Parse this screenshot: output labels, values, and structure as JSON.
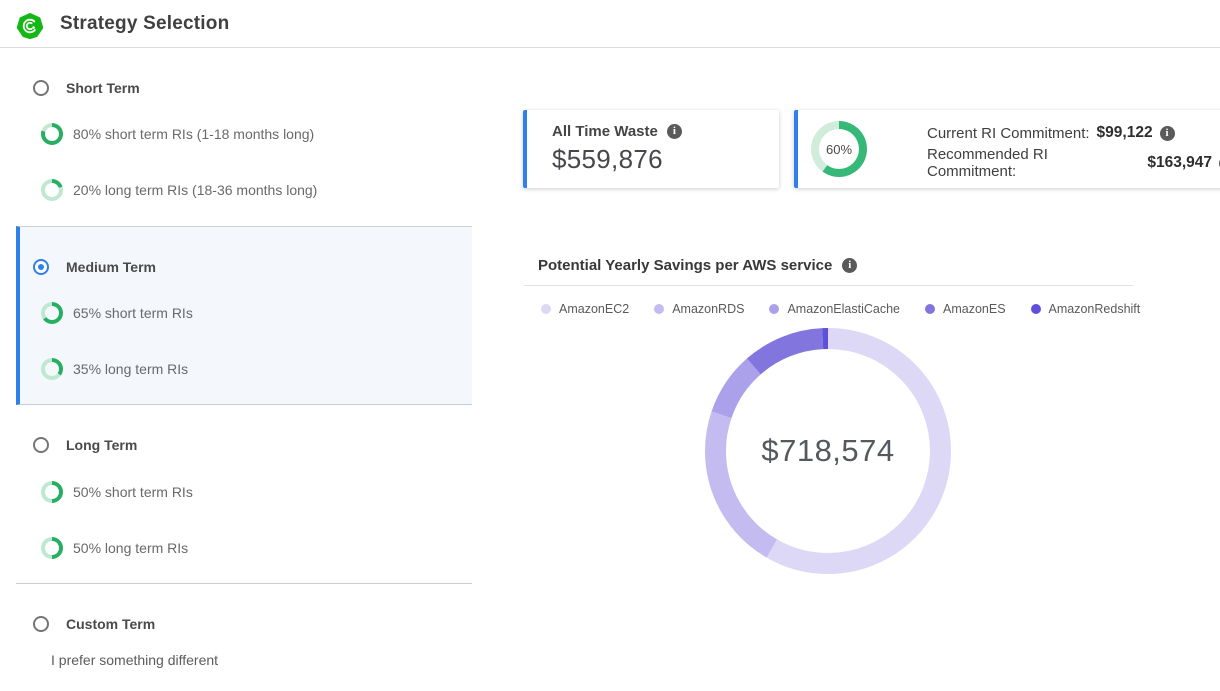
{
  "header": {
    "title": "Strategy Selection"
  },
  "colors": {
    "accent_blue": "#2f80ed",
    "ring_dark_green": "#27ae60",
    "ring_light_green": "#bfe8d1",
    "gauge_dark_green": "#35b878",
    "gauge_light_green": "#d2ecdc"
  },
  "sidebar": {
    "sections": [
      {
        "title": "Short Term",
        "selected": false,
        "rows": [
          {
            "pct": 80,
            "label": "80% short term RIs (1-18 months long)"
          },
          {
            "pct": 20,
            "label": "20% long term RIs (18-36 months long)"
          }
        ]
      },
      {
        "title": "Medium Term",
        "selected": true,
        "rows": [
          {
            "pct": 65,
            "label": "65% short term RIs"
          },
          {
            "pct": 35,
            "label": "35% long term RIs"
          }
        ]
      },
      {
        "title": "Long Term",
        "selected": false,
        "rows": [
          {
            "pct": 50,
            "label": "50% short term RIs"
          },
          {
            "pct": 50,
            "label": "50% long term RIs"
          }
        ]
      },
      {
        "title": "Custom Term",
        "selected": false,
        "subtitle": "I prefer something different",
        "rows": []
      }
    ]
  },
  "cards": {
    "waste": {
      "label": "All Time Waste",
      "value": "$559,876"
    },
    "commitment": {
      "gauge_pct": 60,
      "gauge_label": "60%",
      "current_label": "Current RI Commitment:",
      "current_value": "$99,122",
      "recommended_label": "Recommended RI Commitment:",
      "recommended_value": "$163,947"
    }
  },
  "chart": {
    "title": "Potential Yearly Savings per AWS service",
    "center_value": "$718,574"
  },
  "chart_data": {
    "type": "pie",
    "donut": true,
    "title": "Potential Yearly Savings per AWS service",
    "center_total": "$718,574",
    "legend_position": "top",
    "start_angle_deg": 0,
    "direction": "clockwise",
    "series": [
      {
        "name": "AmazonEC2",
        "pct": 58.3,
        "color": "#dcd8f6"
      },
      {
        "name": "AmazonRDS",
        "pct": 21.9,
        "color": "#c4bcf0"
      },
      {
        "name": "AmazonElastiCache",
        "pct": 8.3,
        "color": "#aba1ea"
      },
      {
        "name": "AmazonES",
        "pct": 10.7,
        "color": "#8375de"
      },
      {
        "name": "AmazonRedshift",
        "pct": 0.8,
        "color": "#604fd8"
      }
    ]
  }
}
